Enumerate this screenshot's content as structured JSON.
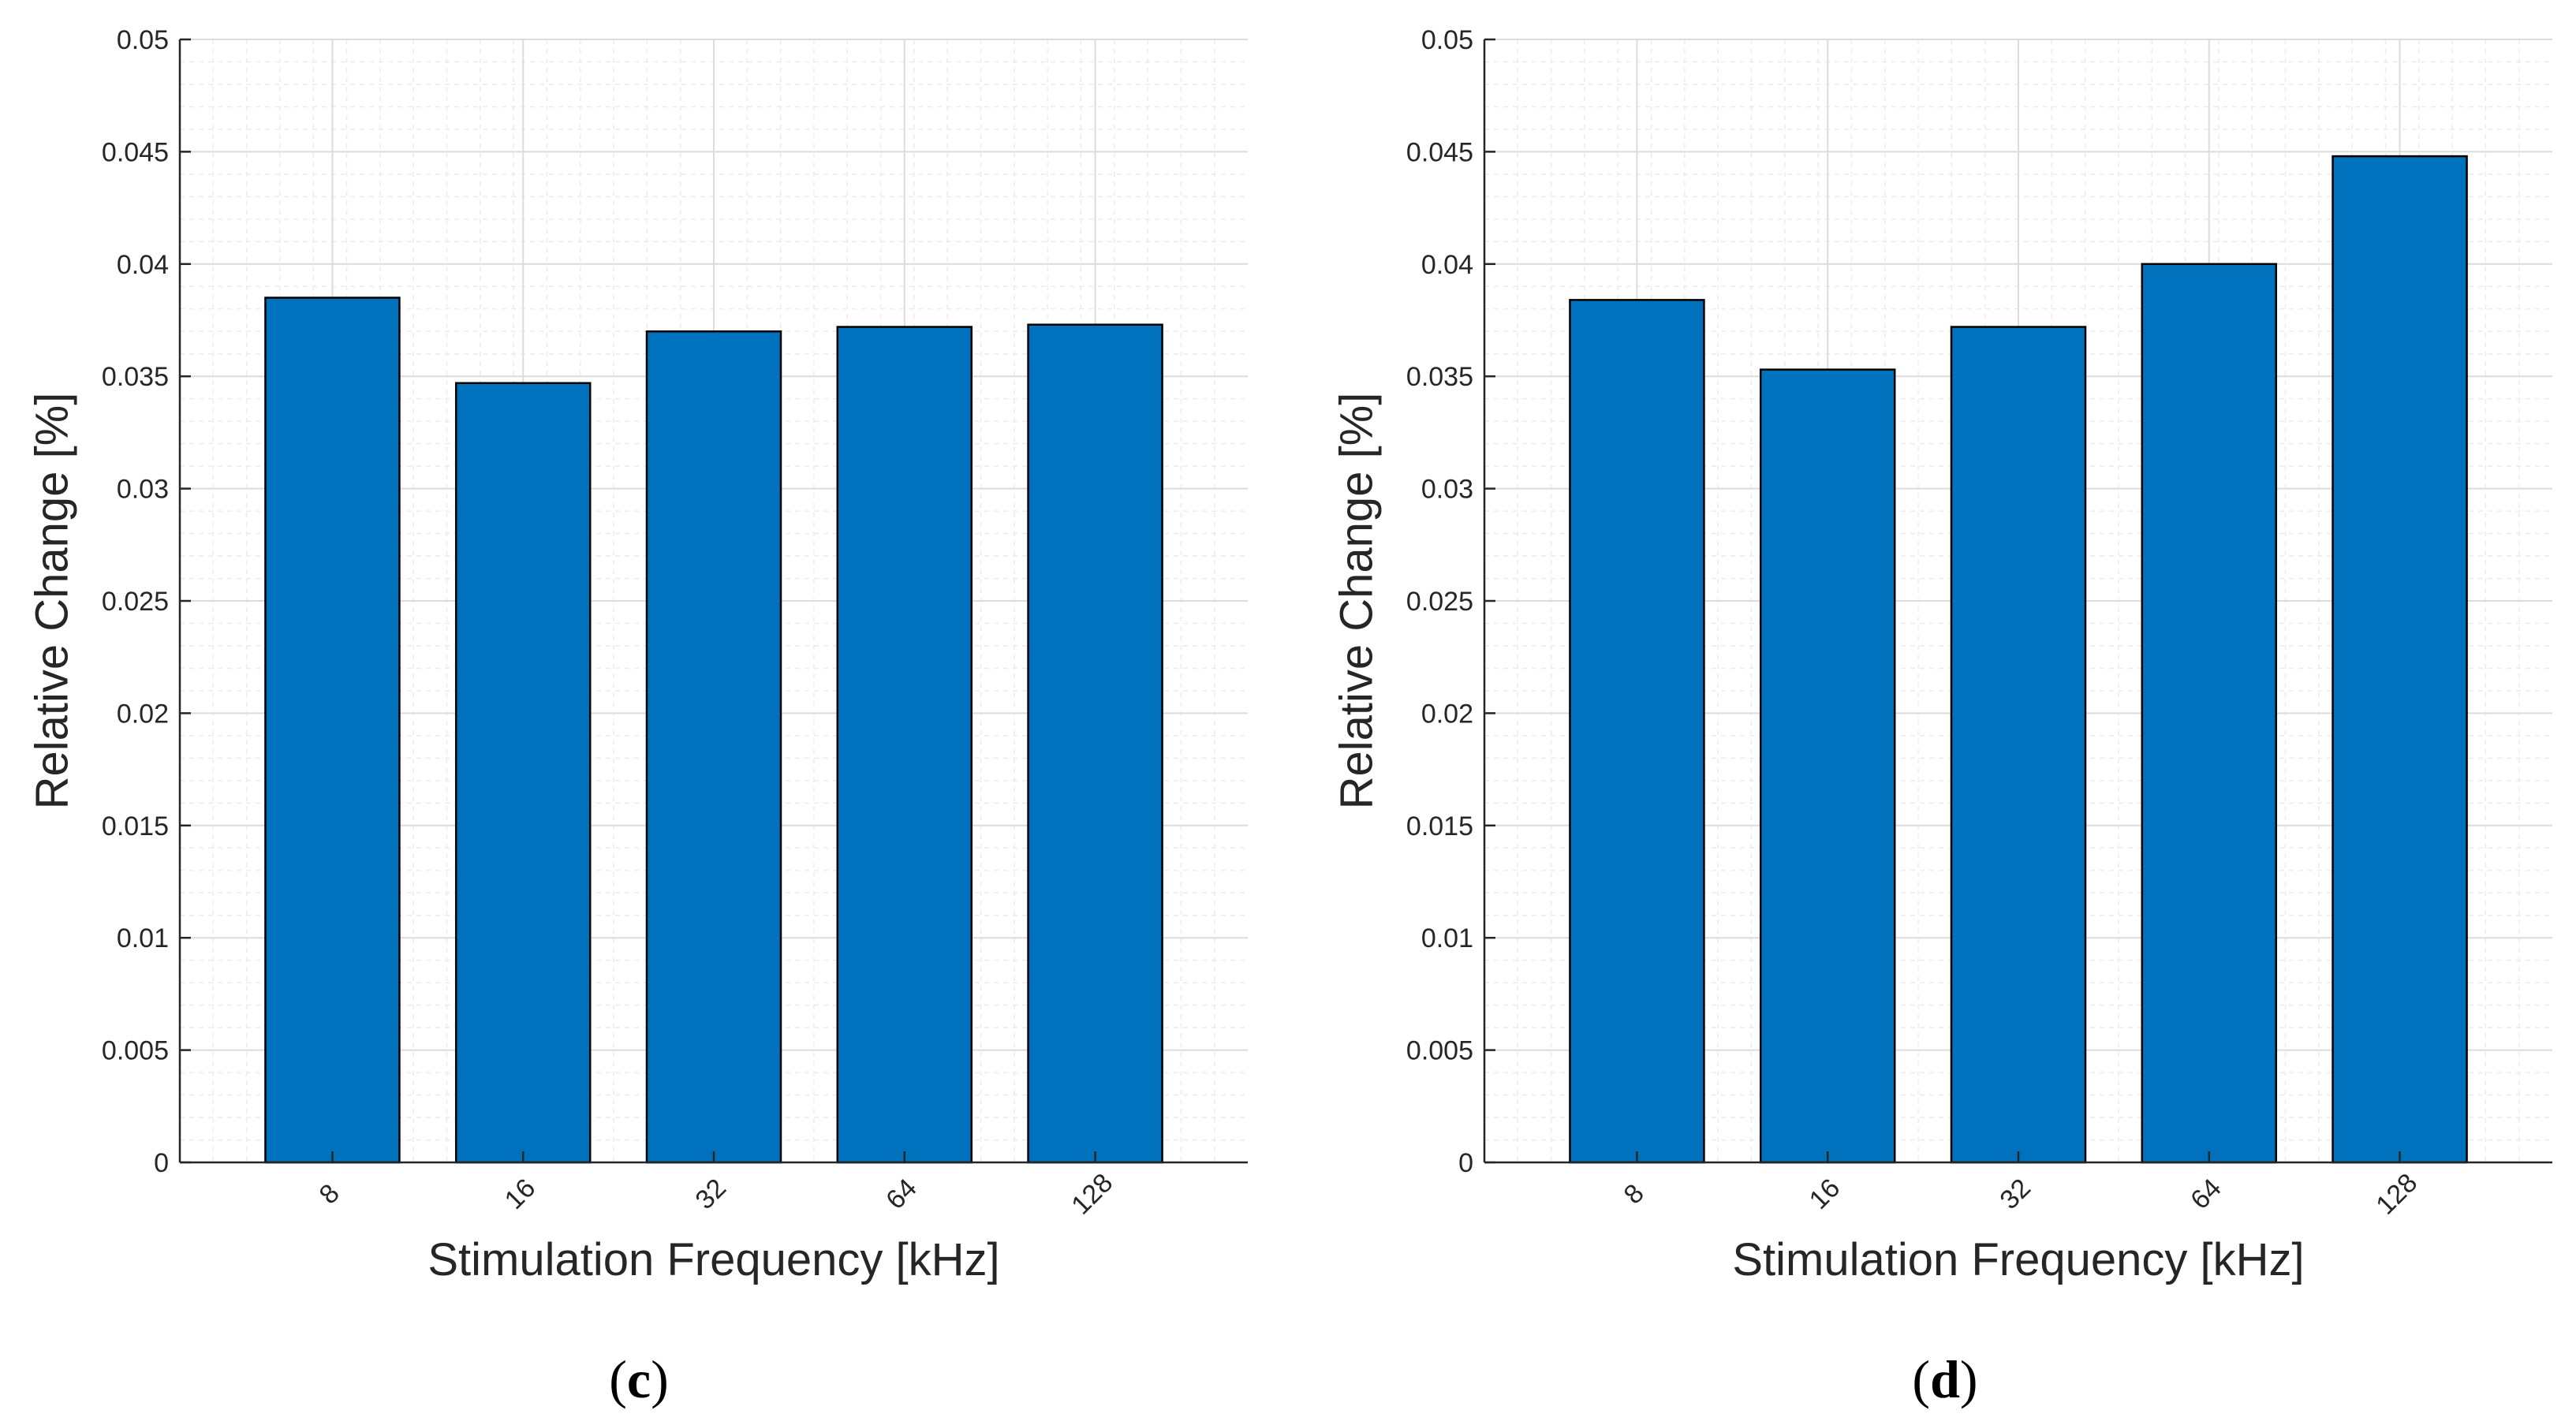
{
  "colors": {
    "bar_fill": "#0072bd",
    "bar_edge": "#000000",
    "axis": "#262626",
    "grid_major": "#dcdcdc",
    "grid_minor": "#ececec",
    "background": "#ffffff"
  },
  "chart_data": [
    {
      "type": "bar",
      "panel_label": {
        "open": "(",
        "letter": "c",
        "close": ")"
      },
      "categories": [
        "8",
        "16",
        "32",
        "64",
        "128"
      ],
      "values": [
        0.0385,
        0.0347,
        0.037,
        0.0372,
        0.0373
      ],
      "xlabel": "Stimulation Frequency [kHz]",
      "ylabel": "Relative Change [%]",
      "ylim": [
        0,
        0.05
      ],
      "yticks": [
        "0",
        "0.005",
        "0.01",
        "0.015",
        "0.02",
        "0.025",
        "0.03",
        "0.035",
        "0.04",
        "0.045",
        "0.05"
      ],
      "grid": true,
      "minor_grid": true
    },
    {
      "type": "bar",
      "panel_label": {
        "open": "(",
        "letter": "d",
        "close": ")"
      },
      "categories": [
        "8",
        "16",
        "32",
        "64",
        "128"
      ],
      "values": [
        0.0384,
        0.0353,
        0.0372,
        0.04,
        0.0448
      ],
      "xlabel": "Stimulation Frequency [kHz]",
      "ylabel": "Relative Change [%]",
      "ylim": [
        0,
        0.05
      ],
      "yticks": [
        "0",
        "0.005",
        "0.01",
        "0.015",
        "0.02",
        "0.025",
        "0.03",
        "0.035",
        "0.04",
        "0.045",
        "0.05"
      ],
      "grid": true,
      "minor_grid": true
    }
  ]
}
